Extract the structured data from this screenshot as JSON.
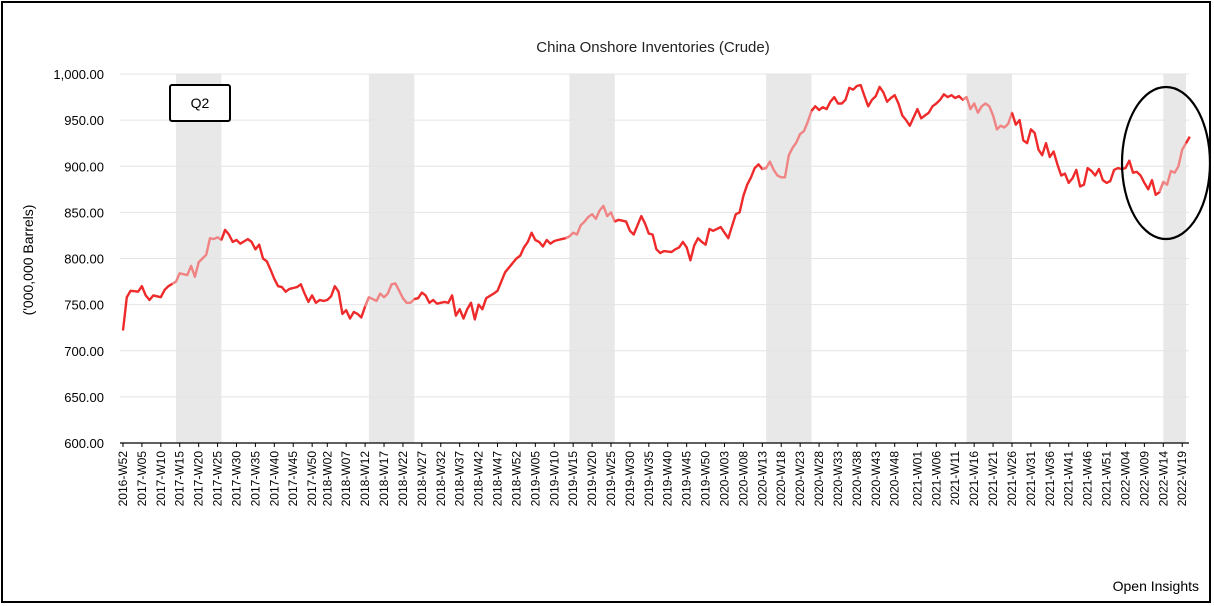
{
  "chart_data": {
    "type": "line",
    "title": "China Onshore Inventories (Crude)",
    "xlabel": "",
    "ylabel": "('000,000 Barrels)",
    "ylim": [
      600,
      1000
    ],
    "yticks": [
      "600.00",
      "650.00",
      "700.00",
      "750.00",
      "800.00",
      "850.00",
      "900.00",
      "950.00",
      "1,000.00"
    ],
    "tick_labels": [
      "2016-W52",
      "2017-W05",
      "2017-W10",
      "2017-W15",
      "2017-W20",
      "2017-W25",
      "2017-W30",
      "2017-W35",
      "2017-W40",
      "2017-W45",
      "2017-W50",
      "2018-W02",
      "2018-W07",
      "2018-W12",
      "2018-W17",
      "2018-W22",
      "2018-W27",
      "2018-W32",
      "2018-W37",
      "2018-W42",
      "2018-W47",
      "2018-W52",
      "2019-W05",
      "2019-W10",
      "2019-W15",
      "2019-W20",
      "2019-W25",
      "2019-W30",
      "2019-W35",
      "2019-W40",
      "2019-W45",
      "2019-W50",
      "2020-W03",
      "2020-W08",
      "2020-W13",
      "2020-W18",
      "2020-W23",
      "2020-W28",
      "2020-W33",
      "2020-W38",
      "2020-W43",
      "2020-W48",
      "2021-W01",
      "2021-W06",
      "2021-W11",
      "2021-W16",
      "2021-W21",
      "2021-W26",
      "2021-W31",
      "2021-W36",
      "2021-W41",
      "2021-W46",
      "2021-W51",
      "2022-W04",
      "2022-W09",
      "2022-W14",
      "2022-W19"
    ],
    "shaded_periods": [
      {
        "start": "2017-W14",
        "end": "2017-W26"
      },
      {
        "start": "2018-W13",
        "end": "2018-W25"
      },
      {
        "start": "2019-W14",
        "end": "2019-W26"
      },
      {
        "start": "2020-W14",
        "end": "2020-W26"
      },
      {
        "start": "2021-W14",
        "end": "2021-W26"
      },
      {
        "start": "2022-W14",
        "end": "2022-W20"
      }
    ],
    "series": [
      {
        "color": "#ef2a2a",
        "shaded_color": "#f08383",
        "anchors": [
          [
            "2016-W52",
            722
          ],
          [
            "2017-W01",
            758
          ],
          [
            "2017-W02",
            765
          ],
          [
            "2017-W04",
            764
          ],
          [
            "2017-W05",
            770
          ],
          [
            "2017-W06",
            760
          ],
          [
            "2017-W07",
            755
          ],
          [
            "2017-W08",
            760
          ],
          [
            "2017-W10",
            758
          ],
          [
            "2017-W11",
            766
          ],
          [
            "2017-W12",
            770
          ],
          [
            "2017-W14",
            775
          ],
          [
            "2017-W15",
            784
          ],
          [
            "2017-W16",
            783
          ],
          [
            "2017-W17",
            782
          ],
          [
            "2017-W18",
            792
          ],
          [
            "2017-W19",
            780
          ],
          [
            "2017-W20",
            796
          ],
          [
            "2017-W22",
            804
          ],
          [
            "2017-W23",
            822
          ],
          [
            "2017-W24",
            821
          ],
          [
            "2017-W25",
            823
          ],
          [
            "2017-W26",
            820
          ],
          [
            "2017-W27",
            831
          ],
          [
            "2017-W28",
            826
          ],
          [
            "2017-W29",
            818
          ],
          [
            "2017-W30",
            820
          ],
          [
            "2017-W31",
            816
          ],
          [
            "2017-W33",
            821
          ],
          [
            "2017-W34",
            818
          ],
          [
            "2017-W35",
            810
          ],
          [
            "2017-W36",
            815
          ],
          [
            "2017-W37",
            800
          ],
          [
            "2017-W38",
            797
          ],
          [
            "2017-W39",
            788
          ],
          [
            "2017-W40",
            778
          ],
          [
            "2017-W41",
            770
          ],
          [
            "2017-W42",
            769
          ],
          [
            "2017-W43",
            764
          ],
          [
            "2017-W44",
            767
          ],
          [
            "2017-W46",
            769
          ],
          [
            "2017-W47",
            772
          ],
          [
            "2017-W48",
            762
          ],
          [
            "2017-W49",
            753
          ],
          [
            "2017-W50",
            760
          ],
          [
            "2017-W51",
            752
          ],
          [
            "2017-W52",
            755
          ],
          [
            "2018-W01",
            754
          ],
          [
            "2018-W02",
            755
          ],
          [
            "2018-W03",
            759
          ],
          [
            "2018-W04",
            770
          ],
          [
            "2018-W05",
            764
          ],
          [
            "2018-W06",
            740
          ],
          [
            "2018-W07",
            744
          ],
          [
            "2018-W08",
            735
          ],
          [
            "2018-W09",
            742
          ],
          [
            "2018-W10",
            740
          ],
          [
            "2018-W11",
            736
          ],
          [
            "2018-W12",
            748
          ],
          [
            "2018-W13",
            758
          ],
          [
            "2018-W14",
            756
          ],
          [
            "2018-W15",
            754
          ],
          [
            "2018-W16",
            762
          ],
          [
            "2018-W17",
            758
          ],
          [
            "2018-W18",
            762
          ],
          [
            "2018-W19",
            772
          ],
          [
            "2018-W20",
            773
          ],
          [
            "2018-W21",
            765
          ],
          [
            "2018-W22",
            757
          ],
          [
            "2018-W23",
            752
          ],
          [
            "2018-W24",
            752
          ],
          [
            "2018-W25",
            756
          ],
          [
            "2018-W26",
            757
          ],
          [
            "2018-W27",
            763
          ],
          [
            "2018-W28",
            760
          ],
          [
            "2018-W29",
            752
          ],
          [
            "2018-W30",
            755
          ],
          [
            "2018-W31",
            751
          ],
          [
            "2018-W33",
            753
          ],
          [
            "2018-W34",
            752
          ],
          [
            "2018-W35",
            760
          ],
          [
            "2018-W36",
            738
          ],
          [
            "2018-W37",
            745
          ],
          [
            "2018-W38",
            735
          ],
          [
            "2018-W39",
            745
          ],
          [
            "2018-W40",
            752
          ],
          [
            "2018-W41",
            734
          ],
          [
            "2018-W42",
            750
          ],
          [
            "2018-W43",
            745
          ],
          [
            "2018-W44",
            757
          ],
          [
            "2018-W46",
            762
          ],
          [
            "2018-W47",
            765
          ],
          [
            "2018-W48",
            775
          ],
          [
            "2018-W49",
            785
          ],
          [
            "2018-W50",
            790
          ],
          [
            "2018-W51",
            795
          ],
          [
            "2018-W52",
            800
          ],
          [
            "2019-W01",
            803
          ],
          [
            "2019-W02",
            812
          ],
          [
            "2019-W03",
            818
          ],
          [
            "2019-W04",
            828
          ],
          [
            "2019-W05",
            820
          ],
          [
            "2019-W06",
            818
          ],
          [
            "2019-W07",
            813
          ],
          [
            "2019-W08",
            820
          ],
          [
            "2019-W09",
            816
          ],
          [
            "2019-W10",
            819
          ],
          [
            "2019-W12",
            821
          ],
          [
            "2019-W13",
            822
          ],
          [
            "2019-W14",
            824
          ],
          [
            "2019-W15",
            828
          ],
          [
            "2019-W16",
            826
          ],
          [
            "2019-W17",
            836
          ],
          [
            "2019-W18",
            840
          ],
          [
            "2019-W19",
            845
          ],
          [
            "2019-W20",
            848
          ],
          [
            "2019-W21",
            843
          ],
          [
            "2019-W22",
            852
          ],
          [
            "2019-W23",
            857
          ],
          [
            "2019-W24",
            846
          ],
          [
            "2019-W25",
            850
          ],
          [
            "2019-W26",
            840
          ],
          [
            "2019-W27",
            842
          ],
          [
            "2019-W29",
            840
          ],
          [
            "2019-W30",
            830
          ],
          [
            "2019-W31",
            826
          ],
          [
            "2019-W32",
            836
          ],
          [
            "2019-W33",
            846
          ],
          [
            "2019-W34",
            838
          ],
          [
            "2019-W35",
            827
          ],
          [
            "2019-W36",
            826
          ],
          [
            "2019-W37",
            810
          ],
          [
            "2019-W38",
            806
          ],
          [
            "2019-W39",
            808
          ],
          [
            "2019-W41",
            807
          ],
          [
            "2019-W42",
            810
          ],
          [
            "2019-W43",
            812
          ],
          [
            "2019-W44",
            818
          ],
          [
            "2019-W45",
            812
          ],
          [
            "2019-W46",
            798
          ],
          [
            "2019-W47",
            814
          ],
          [
            "2019-W48",
            822
          ],
          [
            "2019-W49",
            818
          ],
          [
            "2019-W50",
            815
          ],
          [
            "2019-W51",
            832
          ],
          [
            "2019-W52",
            830
          ],
          [
            "2020-W01",
            832
          ],
          [
            "2020-W02",
            834
          ],
          [
            "2020-W03",
            828
          ],
          [
            "2020-W04",
            822
          ],
          [
            "2020-W05",
            835
          ],
          [
            "2020-W06",
            848
          ],
          [
            "2020-W07",
            850
          ],
          [
            "2020-W08",
            868
          ],
          [
            "2020-W09",
            880
          ],
          [
            "2020-W10",
            888
          ],
          [
            "2020-W11",
            898
          ],
          [
            "2020-W12",
            902
          ],
          [
            "2020-W13",
            897
          ],
          [
            "2020-W14",
            898
          ],
          [
            "2020-W15",
            905
          ],
          [
            "2020-W16",
            896
          ],
          [
            "2020-W17",
            890
          ],
          [
            "2020-W18",
            888
          ],
          [
            "2020-W19",
            888
          ],
          [
            "2020-W20",
            912
          ],
          [
            "2020-W21",
            920
          ],
          [
            "2020-W22",
            926
          ],
          [
            "2020-W23",
            935
          ],
          [
            "2020-W24",
            938
          ],
          [
            "2020-W25",
            948
          ],
          [
            "2020-W26",
            960
          ],
          [
            "2020-W27",
            965
          ],
          [
            "2020-W28",
            961
          ],
          [
            "2020-W29",
            964
          ],
          [
            "2020-W30",
            962
          ],
          [
            "2020-W31",
            970
          ],
          [
            "2020-W32",
            975
          ],
          [
            "2020-W33",
            968
          ],
          [
            "2020-W34",
            968
          ],
          [
            "2020-W35",
            972
          ],
          [
            "2020-W36",
            985
          ],
          [
            "2020-W37",
            983
          ],
          [
            "2020-W38",
            987
          ],
          [
            "2020-W39",
            988
          ],
          [
            "2020-W40",
            976
          ],
          [
            "2020-W41",
            965
          ],
          [
            "2020-W42",
            972
          ],
          [
            "2020-W43",
            976
          ],
          [
            "2020-W44",
            986
          ],
          [
            "2020-W45",
            980
          ],
          [
            "2020-W46",
            970
          ],
          [
            "2020-W47",
            974
          ],
          [
            "2020-W48",
            977
          ],
          [
            "2020-W49",
            968
          ],
          [
            "2020-W50",
            955
          ],
          [
            "2020-W51",
            950
          ],
          [
            "2020-W52",
            944
          ],
          [
            "2021-W01",
            962
          ],
          [
            "2021-W02",
            952
          ],
          [
            "2021-W03",
            955
          ],
          [
            "2021-W04",
            958
          ],
          [
            "2021-W05",
            965
          ],
          [
            "2021-W06",
            968
          ],
          [
            "2021-W07",
            972
          ],
          [
            "2021-W08",
            978
          ],
          [
            "2021-W09",
            975
          ],
          [
            "2021-W10",
            977
          ],
          [
            "2021-W11",
            974
          ],
          [
            "2021-W12",
            976
          ],
          [
            "2021-W13",
            972
          ],
          [
            "2021-W14",
            975
          ],
          [
            "2021-W15",
            962
          ],
          [
            "2021-W16",
            968
          ],
          [
            "2021-W17",
            958
          ],
          [
            "2021-W18",
            965
          ],
          [
            "2021-W19",
            968
          ],
          [
            "2021-W20",
            965
          ],
          [
            "2021-W21",
            955
          ],
          [
            "2021-W22",
            940
          ],
          [
            "2021-W23",
            944
          ],
          [
            "2021-W24",
            942
          ],
          [
            "2021-W25",
            946
          ],
          [
            "2021-W26",
            958
          ],
          [
            "2021-W27",
            945
          ],
          [
            "2021-W28",
            950
          ],
          [
            "2021-W29",
            928
          ],
          [
            "2021-W30",
            925
          ],
          [
            "2021-W31",
            940
          ],
          [
            "2021-W32",
            936
          ],
          [
            "2021-W33",
            918
          ],
          [
            "2021-W34",
            912
          ],
          [
            "2021-W35",
            925
          ],
          [
            "2021-W36",
            910
          ],
          [
            "2021-W37",
            916
          ],
          [
            "2021-W38",
            902
          ],
          [
            "2021-W39",
            890
          ],
          [
            "2021-W40",
            892
          ],
          [
            "2021-W41",
            882
          ],
          [
            "2021-W42",
            887
          ],
          [
            "2021-W43",
            896
          ],
          [
            "2021-W44",
            878
          ],
          [
            "2021-W45",
            880
          ],
          [
            "2021-W46",
            898
          ],
          [
            "2021-W47",
            895
          ],
          [
            "2021-W48",
            890
          ],
          [
            "2021-W49",
            897
          ],
          [
            "2021-W50",
            885
          ],
          [
            "2021-W51",
            882
          ],
          [
            "2021-W52",
            884
          ],
          [
            "2022-W01",
            896
          ],
          [
            "2022-W02",
            898
          ],
          [
            "2022-W03",
            897
          ],
          [
            "2022-W04",
            898
          ],
          [
            "2022-W05",
            906
          ],
          [
            "2022-W06",
            893
          ],
          [
            "2022-W07",
            894
          ],
          [
            "2022-W08",
            890
          ],
          [
            "2022-W09",
            882
          ],
          [
            "2022-W10",
            875
          ],
          [
            "2022-W11",
            885
          ],
          [
            "2022-W12",
            869
          ],
          [
            "2022-W13",
            872
          ],
          [
            "2022-W14",
            883
          ],
          [
            "2022-W15",
            880
          ],
          [
            "2022-W16",
            895
          ],
          [
            "2022-W17",
            893
          ],
          [
            "2022-W18",
            900
          ],
          [
            "2022-W19",
            918
          ],
          [
            "2022-W20",
            925
          ],
          [
            "2022-W21",
            932
          ]
        ]
      }
    ],
    "annotations": [
      {
        "type": "box",
        "text": "Q2"
      },
      {
        "type": "ellipse",
        "text": ""
      }
    ],
    "grid": true,
    "legend": "none"
  },
  "footer": {
    "source": "Open Insights"
  }
}
